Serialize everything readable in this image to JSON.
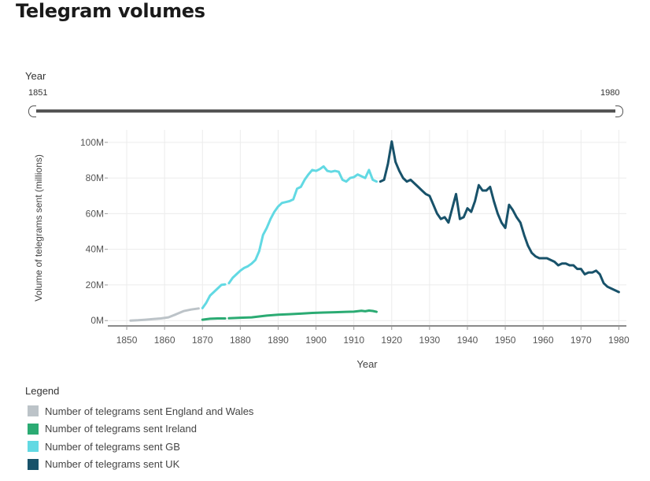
{
  "page_title": "Telegram volumes",
  "slider": {
    "label": "Year",
    "min_label": "1851",
    "max_label": "1980"
  },
  "legend": {
    "title": "Legend",
    "items": [
      {
        "label": "Number of telegrams sent England and Wales",
        "color": "#bcc3c8"
      },
      {
        "label": "Number of telegrams sent Ireland",
        "color": "#2bab73"
      },
      {
        "label": "Number of telegrams sent GB",
        "color": "#62d9e3"
      },
      {
        "label": "Number of telegrams sent UK",
        "color": "#18526a"
      }
    ]
  },
  "chart_data": {
    "type": "line",
    "title": "",
    "xlabel": "Year",
    "ylabel": "Volume of telegrams sent (millions)",
    "xlim": [
      1845,
      1982
    ],
    "ylim": [
      -3,
      107
    ],
    "x_ticks": [
      1850,
      1860,
      1870,
      1880,
      1890,
      1900,
      1910,
      1920,
      1930,
      1940,
      1950,
      1960,
      1970,
      1980
    ],
    "x_tick_labels": [
      "1850",
      "1860",
      "1870",
      "1880",
      "1890",
      "1900",
      "1910",
      "1920",
      "1930",
      "1940",
      "1950",
      "1960",
      "1970",
      "1980"
    ],
    "y_ticks": [
      0,
      20,
      40,
      60,
      80,
      100
    ],
    "y_tick_labels": [
      "0M",
      "20M",
      "40M",
      "60M",
      "80M",
      "100M"
    ],
    "grid": true,
    "legend_position": "bottom-left",
    "series": [
      {
        "name": "Number of telegrams sent England and Wales",
        "color": "#bcc3c8",
        "segments": [
          {
            "x": [
              1851,
              1853,
              1855,
              1857,
              1859,
              1861,
              1863,
              1865,
              1867,
              1869
            ],
            "y": [
              0,
              0.2,
              0.5,
              0.9,
              1.2,
              1.8,
              3.5,
              5.3,
              6.2,
              6.8
            ]
          }
        ]
      },
      {
        "name": "Number of telegrams sent Ireland",
        "color": "#2bab73",
        "segments": [
          {
            "x": [
              1870,
              1872,
              1874,
              1876
            ],
            "y": [
              0.5,
              1,
              1.2,
              1.2
            ]
          },
          {
            "x": [
              1877,
              1880,
              1883,
              1885,
              1887,
              1890,
              1893,
              1896,
              1899,
              1902,
              1905,
              1908,
              1910,
              1912,
              1913,
              1914,
              1915,
              1916
            ],
            "y": [
              1.3,
              1.6,
              1.8,
              2.3,
              2.8,
              3.3,
              3.6,
              3.9,
              4.3,
              4.5,
              4.7,
              4.9,
              5.0,
              5.5,
              5.2,
              5.6,
              5.4,
              4.9
            ]
          }
        ]
      },
      {
        "name": "Number of telegrams sent GB",
        "color": "#62d9e3",
        "segments": [
          {
            "x": [
              1870,
              1871,
              1872,
              1873,
              1874,
              1875,
              1876
            ],
            "y": [
              7,
              10,
              14,
              16,
              18,
              20,
              20.3
            ]
          },
          {
            "x": [
              1877,
              1878,
              1879,
              1880,
              1881,
              1882,
              1883,
              1884,
              1885,
              1886,
              1887,
              1888,
              1889,
              1890,
              1891,
              1892,
              1893,
              1894,
              1895,
              1896,
              1897,
              1898,
              1899,
              1900,
              1901,
              1902,
              1903,
              1904,
              1905,
              1906,
              1907,
              1908,
              1909,
              1910,
              1911,
              1912,
              1913,
              1914,
              1915,
              1916
            ],
            "y": [
              21,
              24,
              26,
              28,
              29.5,
              30.5,
              32,
              34,
              39,
              48,
              52,
              57,
              61,
              64,
              66,
              66.5,
              67,
              68,
              74,
              75,
              79,
              82,
              84.5,
              84,
              85,
              86.5,
              84,
              83.5,
              84,
              83.5,
              79,
              78,
              80,
              80.5,
              82,
              81,
              80,
              84.5,
              79,
              78
            ]
          }
        ]
      },
      {
        "name": "Number of telegrams sent UK",
        "color": "#18526a",
        "segments": [
          {
            "x": [
              1917,
              1918,
              1919,
              1920,
              1921,
              1922,
              1923,
              1924,
              1925,
              1926,
              1927,
              1928,
              1929,
              1930,
              1931,
              1932,
              1933,
              1934,
              1935,
              1936,
              1937,
              1938,
              1939,
              1940,
              1941,
              1942,
              1943,
              1944,
              1945,
              1946,
              1947,
              1948,
              1949,
              1950,
              1951,
              1952,
              1953,
              1954,
              1955,
              1956,
              1957,
              1958,
              1959,
              1960,
              1961,
              1962,
              1963,
              1964,
              1965,
              1966,
              1967,
              1968,
              1969,
              1970,
              1971,
              1972,
              1973,
              1974,
              1975,
              1976,
              1977,
              1978,
              1979,
              1980
            ],
            "y": [
              78,
              79,
              88,
              100.5,
              89,
              84,
              80,
              78,
              79,
              77,
              75,
              73,
              71,
              70,
              65,
              60,
              57,
              58,
              55,
              63,
              71,
              57,
              58,
              63,
              61,
              67,
              76,
              73,
              73,
              75,
              67,
              60,
              55,
              52,
              65,
              62,
              58,
              55,
              48,
              42,
              38,
              36,
              35,
              35,
              35,
              34,
              33,
              31,
              32,
              32,
              31,
              31,
              29,
              29,
              26,
              27,
              27,
              28,
              26,
              21,
              19,
              18,
              17,
              16
            ]
          }
        ]
      }
    ]
  }
}
